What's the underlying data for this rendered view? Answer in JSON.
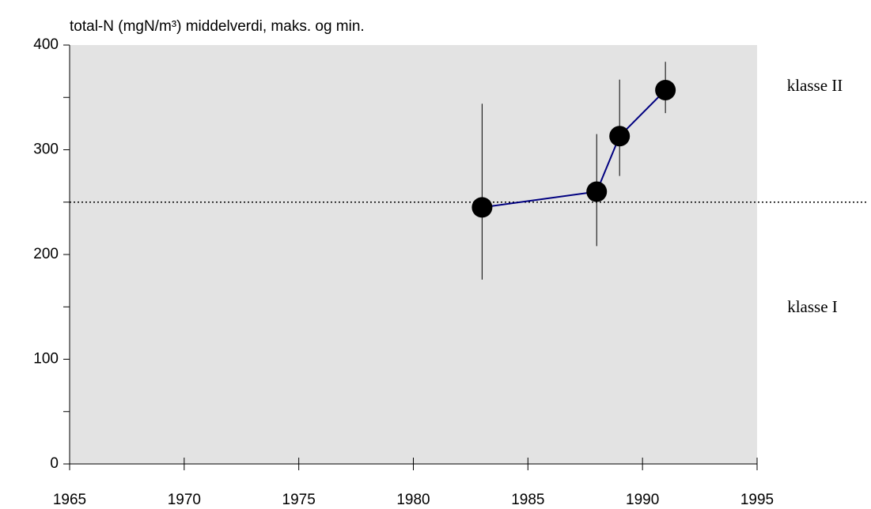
{
  "chart_data": {
    "type": "line",
    "title": "total-N (mgN/m³)  middelverdi, maks. og min.",
    "x": [
      1983,
      1988,
      1989,
      1991
    ],
    "series": [
      {
        "color": "#000080",
        "marker_color": "#000000",
        "values": [
          245,
          260,
          313,
          357
        ],
        "max": [
          344,
          315,
          367,
          384
        ],
        "min": [
          176,
          208,
          275,
          335
        ]
      }
    ],
    "xlim": [
      1965,
      1995
    ],
    "xticks": [
      1965,
      1970,
      1975,
      1980,
      1985,
      1990,
      1995
    ],
    "ylim": [
      0,
      400
    ],
    "yticks": [
      0,
      100,
      200,
      300,
      400
    ],
    "yminor_ticks": [
      50,
      150,
      250,
      350
    ],
    "threshold": 250,
    "annotations": [
      {
        "text": "klasse II"
      },
      {
        "text": "klasse I"
      }
    ],
    "background": "#e3e3e3"
  }
}
